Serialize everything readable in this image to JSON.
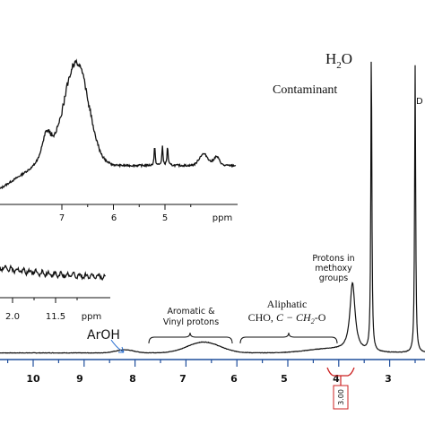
{
  "chart_data": [
    {
      "type": "line",
      "role": "main-spectrum",
      "xlabel": "",
      "x_reversed": true,
      "xlim": [
        2.1,
        11.4
      ],
      "xticks": [
        "10",
        "9",
        "8",
        "7",
        "6",
        "5",
        "4",
        "3"
      ],
      "peaks": [
        {
          "x": 3.73,
          "height": 0.22
        },
        {
          "x": 3.36,
          "height": 0.98
        },
        {
          "x": 2.5,
          "height": 0.93
        }
      ],
      "humps": [
        {
          "x": 6.65,
          "height": 0.035
        },
        {
          "x": 8.2,
          "height": 0.01
        }
      ],
      "annotations": {
        "water": "H",
        "water_sub": "2",
        "water_tail": "O",
        "contaminant": "Contaminant",
        "dmso_cut": "D",
        "aroh": "ArOH",
        "aromatic_line1": "Aromatic &",
        "aromatic_line2": "Vinyl protons",
        "aliphatic_line1": "Aliphatic",
        "aliphatic_line2_a": "CHO, ",
        "aliphatic_line2_b": "C − CH",
        "aliphatic_line2_sub": "2",
        "aliphatic_line2_c": "-O",
        "methoxy_line1": "Protons in",
        "methoxy_line2": "methoxy",
        "methoxy_line3": "groups"
      },
      "integral_label": "3.00",
      "axis_color": "#1f4e9c",
      "integral_color": "#cc2222"
    },
    {
      "type": "line",
      "role": "inset-upper",
      "xlim": [
        4.6,
        8.2
      ],
      "xticks": [
        "7",
        "6",
        "5"
      ],
      "unit": "ppm"
    },
    {
      "type": "line",
      "role": "inset-lower",
      "xticks": [
        "2.0",
        "11.5"
      ],
      "unit": "ppm"
    }
  ]
}
